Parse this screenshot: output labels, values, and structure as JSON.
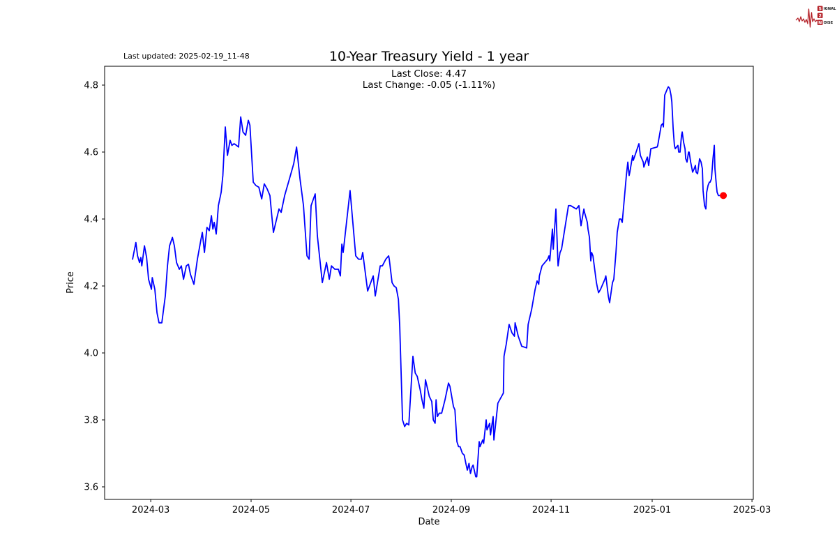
{
  "header": {
    "last_updated": "Last updated: 2025-02-19_11-48",
    "logo": {
      "word1_initial": "S",
      "word1_rest": "IGNAL",
      "word2": "2",
      "word3_initial": "N",
      "word3_rest": "OISE",
      "accent_color": "#b5232a"
    }
  },
  "chart_data": {
    "type": "line",
    "title": "10-Year Treasury Yield - 1 year",
    "annotation_line1": "Last Close: 4.47",
    "annotation_line2": "Last Change: -0.05 (-1.11%)",
    "last_close": 4.47,
    "last_change": -0.05,
    "last_change_pct": "-1.11%",
    "xlabel": "Date",
    "ylabel": "Price",
    "grid": false,
    "legend_position": "none",
    "line_color": "#0000ff",
    "marker_color": "#ff0000",
    "x_unit": "trading days since 2024-02-19",
    "xlim": [
      -16.9,
      375.5
    ],
    "ylim": [
      3.5625,
      4.85625
    ],
    "xticks": [
      {
        "x": 11,
        "label": "2024-03"
      },
      {
        "x": 71.7,
        "label": "2024-05"
      },
      {
        "x": 132.1,
        "label": "2024-07"
      },
      {
        "x": 192.8,
        "label": "2024-09"
      },
      {
        "x": 253.2,
        "label": "2024-11"
      },
      {
        "x": 314.3,
        "label": "2025-01"
      },
      {
        "x": 374.7,
        "label": "2025-03"
      }
    ],
    "yticks": [
      {
        "v": 3.6,
        "label": "3.6"
      },
      {
        "v": 3.8,
        "label": "3.8"
      },
      {
        "v": 4.0,
        "label": "4.0"
      },
      {
        "v": 4.2,
        "label": "4.2"
      },
      {
        "v": 4.4,
        "label": "4.4"
      },
      {
        "v": 4.6,
        "label": "4.6"
      },
      {
        "v": 4.8,
        "label": "4.8"
      }
    ],
    "last_point_marker": {
      "x": 357.4,
      "y": 4.47
    },
    "series": [
      {
        "name": "10-Year Treasury Yield",
        "points": [
          [
            0,
            4.28
          ],
          [
            2,
            4.33
          ],
          [
            3,
            4.29
          ],
          [
            4.2,
            4.27
          ],
          [
            5,
            4.285
          ],
          [
            5.6,
            4.26
          ],
          [
            7.2,
            4.32
          ],
          [
            8.5,
            4.285
          ],
          [
            9.7,
            4.22
          ],
          [
            11.4,
            4.19
          ],
          [
            11.9,
            4.225
          ],
          [
            13.5,
            4.19
          ],
          [
            14.8,
            4.12
          ],
          [
            16,
            4.09
          ],
          [
            17.7,
            4.09
          ],
          [
            19.8,
            4.17
          ],
          [
            21.1,
            4.26
          ],
          [
            22.4,
            4.32
          ],
          [
            24.1,
            4.345
          ],
          [
            25.3,
            4.32
          ],
          [
            26.6,
            4.27
          ],
          [
            28.3,
            4.25
          ],
          [
            29.5,
            4.26
          ],
          [
            30.8,
            4.22
          ],
          [
            32.5,
            4.26
          ],
          [
            33.8,
            4.265
          ],
          [
            35,
            4.235
          ],
          [
            37.1,
            4.205
          ],
          [
            39.2,
            4.28
          ],
          [
            41.4,
            4.34
          ],
          [
            42.2,
            4.36
          ],
          [
            43.5,
            4.3
          ],
          [
            45,
            4.375
          ],
          [
            46.4,
            4.365
          ],
          [
            47.7,
            4.41
          ],
          [
            48.6,
            4.37
          ],
          [
            49.4,
            4.39
          ],
          [
            50.6,
            4.355
          ],
          [
            51.9,
            4.44
          ],
          [
            53.6,
            4.48
          ],
          [
            54.6,
            4.53
          ],
          [
            56.1,
            4.675
          ],
          [
            57.4,
            4.59
          ],
          [
            59,
            4.635
          ],
          [
            60.1,
            4.62
          ],
          [
            61.4,
            4.625
          ],
          [
            62.9,
            4.62
          ],
          [
            64.1,
            4.615
          ],
          [
            65.4,
            4.705
          ],
          [
            66.8,
            4.66
          ],
          [
            68.4,
            4.65
          ],
          [
            70,
            4.695
          ],
          [
            71,
            4.68
          ],
          [
            73,
            4.51
          ],
          [
            74.6,
            4.5
          ],
          [
            76.4,
            4.495
          ],
          [
            78.1,
            4.46
          ],
          [
            79.7,
            4.505
          ],
          [
            81.4,
            4.49
          ],
          [
            83.1,
            4.47
          ],
          [
            84.4,
            4.4
          ],
          [
            85.2,
            4.36
          ],
          [
            88.6,
            4.43
          ],
          [
            89.9,
            4.42
          ],
          [
            92,
            4.47
          ],
          [
            94.9,
            4.52
          ],
          [
            97.5,
            4.565
          ],
          [
            99.2,
            4.615
          ],
          [
            101.3,
            4.52
          ],
          [
            103.4,
            4.44
          ],
          [
            105.5,
            4.29
          ],
          [
            106.8,
            4.28
          ],
          [
            108,
            4.44
          ],
          [
            110.5,
            4.475
          ],
          [
            111.8,
            4.35
          ],
          [
            114.8,
            4.21
          ],
          [
            117.3,
            4.27
          ],
          [
            119,
            4.22
          ],
          [
            120.3,
            4.26
          ],
          [
            122.4,
            4.25
          ],
          [
            124.5,
            4.25
          ],
          [
            125.7,
            4.23
          ],
          [
            126.6,
            4.325
          ],
          [
            127.4,
            4.3
          ],
          [
            131.6,
            4.485
          ],
          [
            135,
            4.29
          ],
          [
            136.7,
            4.28
          ],
          [
            138.4,
            4.28
          ],
          [
            139.2,
            4.3
          ],
          [
            142.2,
            4.185
          ],
          [
            145.6,
            4.23
          ],
          [
            146.8,
            4.17
          ],
          [
            149.8,
            4.26
          ],
          [
            151.1,
            4.26
          ],
          [
            153.2,
            4.28
          ],
          [
            154.9,
            4.29
          ],
          [
            155.3,
            4.28
          ],
          [
            157,
            4.21
          ],
          [
            158.2,
            4.2
          ],
          [
            159.5,
            4.195
          ],
          [
            160.8,
            4.16
          ],
          [
            161.6,
            4.08
          ],
          [
            163.3,
            3.8
          ],
          [
            164.6,
            3.78
          ],
          [
            165.8,
            3.79
          ],
          [
            167.1,
            3.785
          ],
          [
            169.6,
            3.99
          ],
          [
            171,
            3.94
          ],
          [
            172.2,
            3.93
          ],
          [
            174,
            3.89
          ],
          [
            175.1,
            3.86
          ],
          [
            176.2,
            3.835
          ],
          [
            177.2,
            3.92
          ],
          [
            178.1,
            3.9
          ],
          [
            179.5,
            3.87
          ],
          [
            181,
            3.855
          ],
          [
            181.9,
            3.8
          ],
          [
            183,
            3.79
          ],
          [
            183.6,
            3.86
          ],
          [
            184.4,
            3.81
          ],
          [
            185.5,
            3.82
          ],
          [
            187,
            3.82
          ],
          [
            189,
            3.86
          ],
          [
            191.1,
            3.91
          ],
          [
            192,
            3.9
          ],
          [
            194.1,
            3.84
          ],
          [
            195,
            3.83
          ],
          [
            196.2,
            3.735
          ],
          [
            197.2,
            3.72
          ],
          [
            198.1,
            3.72
          ],
          [
            199.5,
            3.7
          ],
          [
            200.6,
            3.695
          ],
          [
            201.6,
            3.67
          ],
          [
            202.5,
            3.65
          ],
          [
            203.5,
            3.67
          ],
          [
            204.4,
            3.64
          ],
          [
            205.4,
            3.66
          ],
          [
            206,
            3.665
          ],
          [
            207.6,
            3.63
          ],
          [
            208.2,
            3.63
          ],
          [
            209.7,
            3.735
          ],
          [
            210.2,
            3.72
          ],
          [
            211.8,
            3.74
          ],
          [
            212.4,
            3.73
          ],
          [
            213.9,
            3.8
          ],
          [
            214.4,
            3.77
          ],
          [
            216,
            3.79
          ],
          [
            216.5,
            3.755
          ],
          [
            218.1,
            3.81
          ],
          [
            218.6,
            3.74
          ],
          [
            221,
            3.85
          ],
          [
            224.3,
            3.88
          ],
          [
            224.7,
            3.99
          ],
          [
            226,
            4.025
          ],
          [
            227.8,
            4.085
          ],
          [
            229.5,
            4.06
          ],
          [
            231,
            4.05
          ],
          [
            231.4,
            4.09
          ],
          [
            233.3,
            4.05
          ],
          [
            235.4,
            4.02
          ],
          [
            238.4,
            4.015
          ],
          [
            239.3,
            4.085
          ],
          [
            241.4,
            4.13
          ],
          [
            243.5,
            4.19
          ],
          [
            244.7,
            4.215
          ],
          [
            245.7,
            4.205
          ],
          [
            246.1,
            4.23
          ],
          [
            247.7,
            4.26
          ],
          [
            249.4,
            4.27
          ],
          [
            251.1,
            4.28
          ],
          [
            251.9,
            4.29
          ],
          [
            252.4,
            4.275
          ],
          [
            254,
            4.37
          ],
          [
            254.5,
            4.31
          ],
          [
            256.1,
            4.43
          ],
          [
            257.4,
            4.26
          ],
          [
            258.6,
            4.3
          ],
          [
            259.5,
            4.31
          ],
          [
            263.7,
            4.44
          ],
          [
            265,
            4.44
          ],
          [
            266.7,
            4.435
          ],
          [
            268.4,
            4.43
          ],
          [
            270,
            4.44
          ],
          [
            271.3,
            4.38
          ],
          [
            273,
            4.43
          ],
          [
            273.4,
            4.42
          ],
          [
            275.1,
            4.39
          ],
          [
            275.5,
            4.37
          ],
          [
            276.4,
            4.345
          ],
          [
            277.2,
            4.275
          ],
          [
            277.7,
            4.3
          ],
          [
            278.5,
            4.29
          ],
          [
            280.6,
            4.21
          ],
          [
            281.4,
            4.19
          ],
          [
            281.9,
            4.18
          ],
          [
            283.1,
            4.19
          ],
          [
            285.7,
            4.22
          ],
          [
            286.3,
            4.23
          ],
          [
            287.8,
            4.17
          ],
          [
            288.6,
            4.15
          ],
          [
            290.3,
            4.21
          ],
          [
            291.1,
            4.22
          ],
          [
            292.4,
            4.3
          ],
          [
            293.2,
            4.36
          ],
          [
            294.5,
            4.4
          ],
          [
            295.4,
            4.4
          ],
          [
            296.2,
            4.39
          ],
          [
            298.7,
            4.53
          ],
          [
            299.6,
            4.57
          ],
          [
            300.4,
            4.53
          ],
          [
            300.8,
            4.54
          ],
          [
            302.5,
            4.59
          ],
          [
            302.9,
            4.575
          ],
          [
            304.6,
            4.6
          ],
          [
            306.3,
            4.625
          ],
          [
            307.2,
            4.59
          ],
          [
            308.9,
            4.57
          ],
          [
            309.3,
            4.555
          ],
          [
            311,
            4.58
          ],
          [
            311.4,
            4.585
          ],
          [
            312.2,
            4.56
          ],
          [
            313.5,
            4.61
          ],
          [
            317.3,
            4.615
          ],
          [
            317.7,
            4.62
          ],
          [
            319.8,
            4.68
          ],
          [
            320.7,
            4.685
          ],
          [
            321.1,
            4.675
          ],
          [
            321.9,
            4.77
          ],
          [
            323.6,
            4.79
          ],
          [
            324.1,
            4.795
          ],
          [
            324.9,
            4.79
          ],
          [
            325.7,
            4.77
          ],
          [
            326.2,
            4.75
          ],
          [
            327,
            4.67
          ],
          [
            327.8,
            4.62
          ],
          [
            328.3,
            4.61
          ],
          [
            329.1,
            4.615
          ],
          [
            329.9,
            4.62
          ],
          [
            330.4,
            4.6
          ],
          [
            331.2,
            4.6
          ],
          [
            332.1,
            4.65
          ],
          [
            332.5,
            4.66
          ],
          [
            333.3,
            4.63
          ],
          [
            334.2,
            4.61
          ],
          [
            334.6,
            4.58
          ],
          [
            335.4,
            4.57
          ],
          [
            336.3,
            4.6
          ],
          [
            336.7,
            4.6
          ],
          [
            337.6,
            4.57
          ],
          [
            338.4,
            4.55
          ],
          [
            338.8,
            4.54
          ],
          [
            339.7,
            4.55
          ],
          [
            340.5,
            4.56
          ],
          [
            340.9,
            4.54
          ],
          [
            341.8,
            4.535
          ],
          [
            343,
            4.58
          ],
          [
            343.9,
            4.57
          ],
          [
            344.7,
            4.55
          ],
          [
            345.1,
            4.485
          ],
          [
            346,
            4.44
          ],
          [
            346.8,
            4.43
          ],
          [
            347.3,
            4.48
          ],
          [
            348.1,
            4.5
          ],
          [
            348.9,
            4.51
          ],
          [
            349.4,
            4.51
          ],
          [
            350.2,
            4.52
          ],
          [
            351.1,
            4.58
          ],
          [
            351.9,
            4.62
          ],
          [
            352.3,
            4.55
          ],
          [
            353.2,
            4.5
          ],
          [
            353.6,
            4.48
          ],
          [
            354.4,
            4.47
          ],
          [
            357.4,
            4.47
          ]
        ]
      }
    ]
  }
}
